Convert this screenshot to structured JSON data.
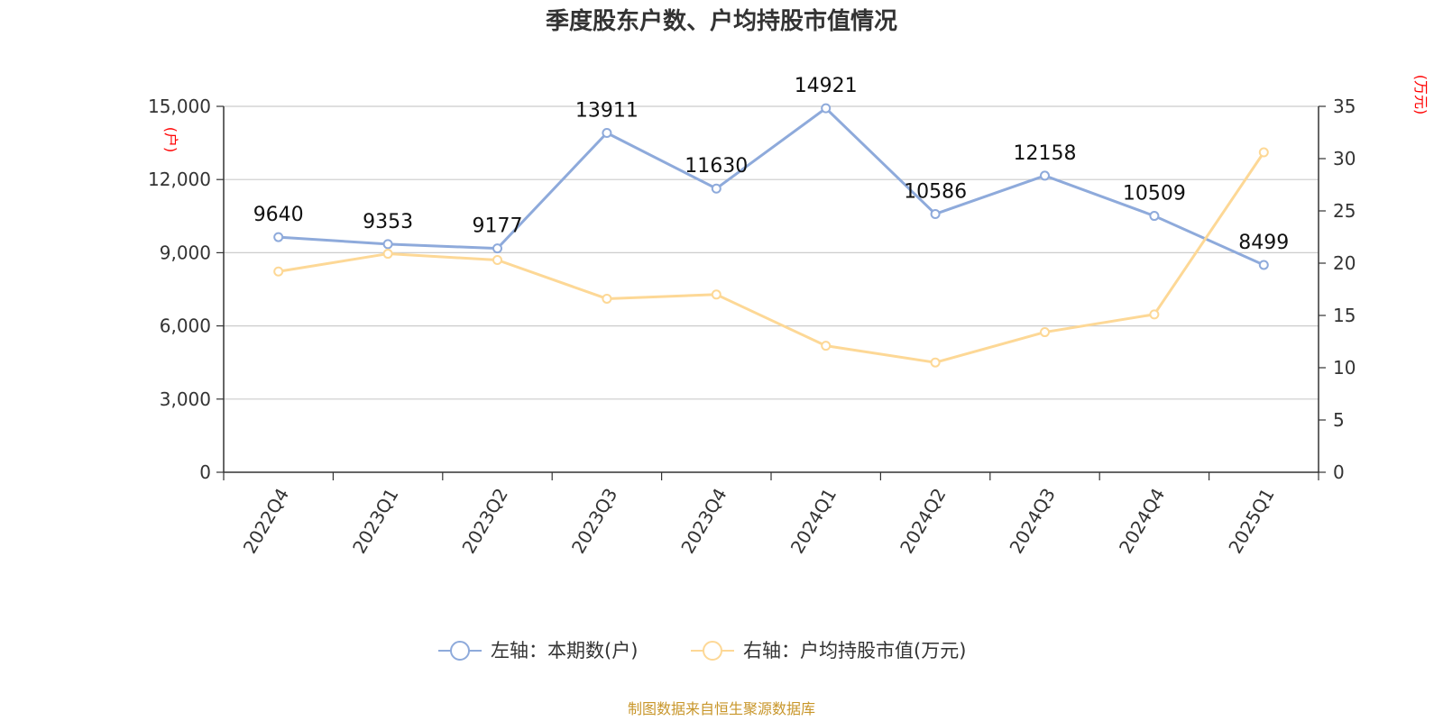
{
  "chart_data": {
    "type": "line",
    "title": "季度股东户数、户均持股市值情况",
    "categories": [
      "2022Q4",
      "2023Q1",
      "2023Q2",
      "2023Q3",
      "2023Q4",
      "2024Q1",
      "2024Q2",
      "2024Q3",
      "2024Q4",
      "2025Q1"
    ],
    "series": [
      {
        "name": "左轴：本期数(户)",
        "axis": "left",
        "color": "#8eaadb",
        "values": [
          9640,
          9353,
          9177,
          13911,
          11630,
          14921,
          10586,
          12158,
          10509,
          8499
        ],
        "show_labels": true
      },
      {
        "name": "右轴：户均持股市值(万元)",
        "axis": "right",
        "color": "#fdd896",
        "values": [
          19.2,
          20.9,
          20.3,
          16.6,
          17.0,
          12.1,
          10.5,
          13.4,
          15.1,
          30.6
        ],
        "show_labels": false
      }
    ],
    "y_left": {
      "unit_label": "(户)",
      "range": [
        0,
        15000
      ],
      "ticks": [
        0,
        3000,
        6000,
        9000,
        12000,
        15000
      ],
      "tick_labels": [
        "0",
        "3,000",
        "6,000",
        "9,000",
        "12,000",
        "15,000"
      ]
    },
    "y_right": {
      "unit_label": "(万元)",
      "range": [
        0,
        35
      ],
      "ticks": [
        0,
        5,
        10,
        15,
        20,
        25,
        30,
        35
      ],
      "tick_labels": [
        "0",
        "5",
        "10",
        "15",
        "20",
        "25",
        "30",
        "35"
      ]
    },
    "grid": true,
    "legend_position": "bottom",
    "source_note": "制图数据来自恒生聚源数据库"
  }
}
